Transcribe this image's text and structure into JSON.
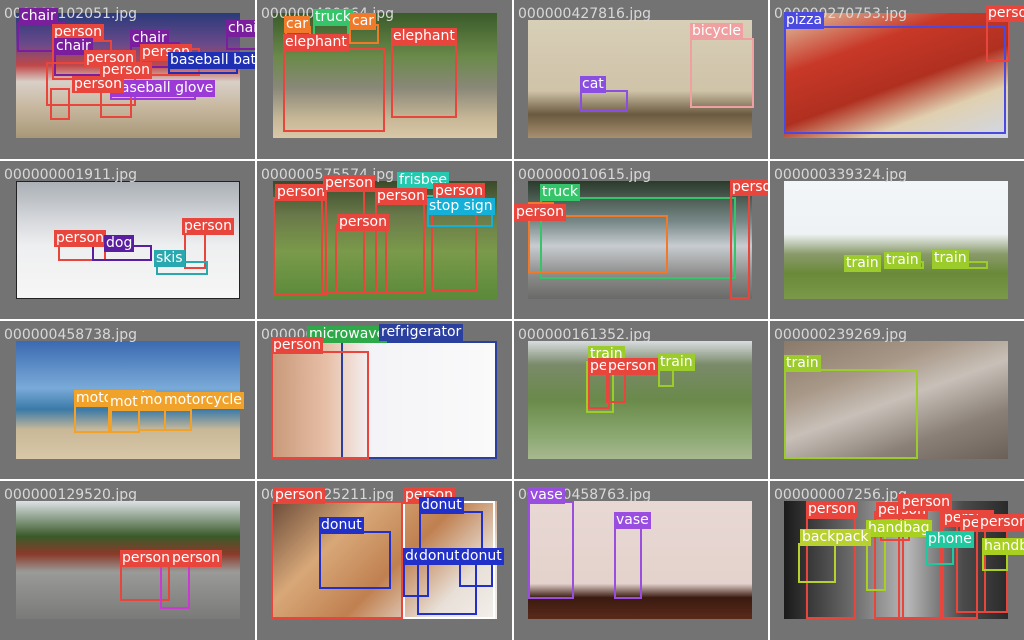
{
  "grid": {
    "tiles": [
      {
        "filename": "000000102051.jpg",
        "detections": [
          {
            "label": "chair"
          },
          {
            "label": "chair"
          },
          {
            "label": "person"
          },
          {
            "label": "chair"
          },
          {
            "label": "chair"
          },
          {
            "label": "person"
          },
          {
            "label": "person"
          },
          {
            "label": "baseball bat"
          },
          {
            "label": "baseball glove"
          },
          {
            "label": "person"
          },
          {
            "label": "person"
          }
        ]
      },
      {
        "filename": "000000480664.jpg",
        "detections": [
          {
            "label": "car"
          },
          {
            "label": "truck"
          },
          {
            "label": "car"
          },
          {
            "label": "elephant"
          },
          {
            "label": "elephant"
          }
        ]
      },
      {
        "filename": "000000427816.jpg",
        "detections": [
          {
            "label": "bicycle"
          },
          {
            "label": "cat"
          }
        ]
      },
      {
        "filename": "000000270753.jpg",
        "detections": [
          {
            "label": "pizza"
          },
          {
            "label": "person"
          }
        ]
      },
      {
        "filename": "000000001911.jpg",
        "detections": [
          {
            "label": "person"
          },
          {
            "label": "dog"
          },
          {
            "label": "person"
          },
          {
            "label": "skis"
          }
        ]
      },
      {
        "filename": "000000575574.jpg",
        "detections": [
          {
            "label": "person"
          },
          {
            "label": "person"
          },
          {
            "label": "frisbee"
          },
          {
            "label": "person"
          },
          {
            "label": "person"
          },
          {
            "label": "stop sign"
          },
          {
            "label": "person"
          }
        ]
      },
      {
        "filename": "000000010615.jpg",
        "detections": [
          {
            "label": "truck"
          },
          {
            "label": "car"
          },
          {
            "label": "person"
          },
          {
            "label": "person"
          }
        ]
      },
      {
        "filename": "000000339324.jpg",
        "detections": [
          {
            "label": "train"
          },
          {
            "label": "train"
          },
          {
            "label": "train"
          }
        ]
      },
      {
        "filename": "000000458738.jpg",
        "detections": [
          {
            "label": "motorcycle"
          },
          {
            "label": "motorcycle"
          },
          {
            "label": "motorcycle"
          },
          {
            "label": "motorcycle"
          }
        ]
      },
      {
        "filename": "000000326550.jpg",
        "detections": [
          {
            "label": "microwave"
          },
          {
            "label": "refrigerator"
          },
          {
            "label": "person"
          }
        ]
      },
      {
        "filename": "000000161352.jpg",
        "detections": [
          {
            "label": "train"
          },
          {
            "label": "person"
          },
          {
            "label": "person"
          },
          {
            "label": "train"
          }
        ]
      },
      {
        "filename": "000000239269.jpg",
        "detections": [
          {
            "label": "train"
          }
        ]
      },
      {
        "filename": "000000129520.jpg",
        "detections": [
          {
            "label": "person"
          },
          {
            "label": "person"
          }
        ]
      },
      {
        "filename": "000000025211.jpg",
        "detections": [
          {
            "label": "person"
          },
          {
            "label": "person"
          },
          {
            "label": "donut"
          },
          {
            "label": "donut"
          },
          {
            "label": "donut"
          },
          {
            "label": "donut"
          },
          {
            "label": "donut"
          }
        ]
      },
      {
        "filename": "000000458763.jpg",
        "detections": [
          {
            "label": "vase"
          },
          {
            "label": "vase"
          }
        ]
      },
      {
        "filename": "000000007256.jpg",
        "detections": [
          {
            "label": "person"
          },
          {
            "label": "person"
          },
          {
            "label": "person"
          },
          {
            "label": "person"
          },
          {
            "label": "handbag"
          },
          {
            "label": "backpack"
          },
          {
            "label": "person"
          },
          {
            "label": "person"
          },
          {
            "label": "phone"
          },
          {
            "label": "handbag"
          },
          {
            "label": "person"
          }
        ]
      }
    ]
  },
  "colors": {
    "person": "#e8453c",
    "chair": "#7a1e9e",
    "baseball bat": "#1f2fb3",
    "baseball glove": "#9b3ad6",
    "car": "#f07a2a",
    "truck": "#35c46a",
    "elephant": "#e8453c",
    "bicycle": "#f0a0a0",
    "cat": "#8a4fe0",
    "pizza": "#4a4ae0",
    "dog": "#5a1fa0",
    "skis": "#2aa8b0",
    "frisbee": "#25c9b0",
    "stop sign": "#15b0d8",
    "train": "#9ccc2c",
    "motorcycle": "#f0a22a",
    "microwave": "#2fa84a",
    "refrigerator": "#2a3f9e",
    "donut": "#2030c8",
    "vase": "#9a4ee0",
    "handbag": "#a8d020",
    "backpack": "#b8d030",
    "phone": "#20c8a0"
  }
}
